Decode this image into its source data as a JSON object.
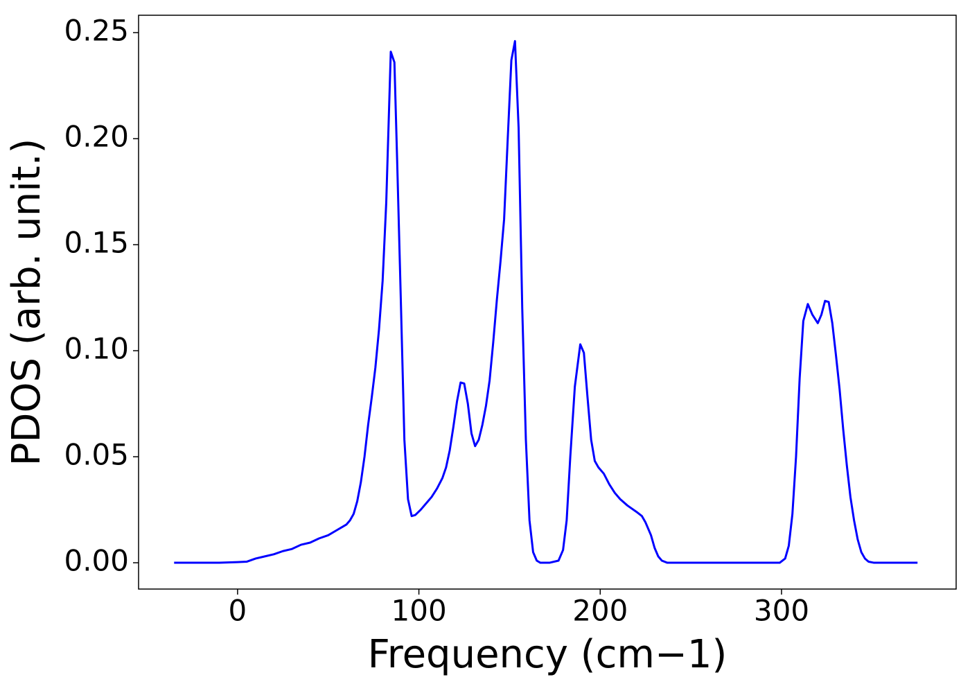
{
  "chart_data": {
    "type": "line",
    "xlabel": "Frequency (cm−1)",
    "ylabel": "PDOS (arb. unit.)",
    "xlim": [
      -54.6,
      396.3
    ],
    "ylim": [
      -0.0124,
      0.2582
    ],
    "xticks": [
      0,
      100,
      200,
      300
    ],
    "yticks": [
      {
        "value": 0,
        "label": "0.00"
      },
      {
        "value": 0.05,
        "label": "0.05"
      },
      {
        "value": 0.1,
        "label": "0.10"
      },
      {
        "value": 0.15,
        "label": "0.15"
      },
      {
        "value": 0.2,
        "label": "0.20"
      },
      {
        "value": 0.25,
        "label": "0.25"
      }
    ],
    "series": [
      {
        "color": "#0000ff",
        "x": [
          -35,
          -10,
          0,
          5,
          10,
          15,
          20,
          25,
          30,
          35,
          40,
          45,
          50,
          55,
          60,
          62,
          64,
          66,
          68,
          70,
          72,
          74,
          76,
          78,
          80,
          82,
          84.5,
          86.5,
          88,
          90,
          92,
          94,
          96,
          98,
          101,
          104,
          107,
          110,
          113,
          115,
          117,
          119,
          121,
          123,
          125,
          127,
          129,
          131,
          133,
          135,
          137,
          139,
          141,
          143,
          145,
          147,
          149,
          151,
          153,
          155,
          157,
          159,
          161,
          163,
          165,
          167,
          172,
          177,
          179.5,
          181.5,
          183.5,
          186,
          189,
          191,
          193,
          195,
          197,
          199,
          202,
          205,
          208,
          211,
          215,
          220,
          223,
          225,
          228,
          230,
          232,
          234,
          237,
          299,
          302,
          304,
          306,
          308,
          310,
          312,
          314.5,
          317,
          320,
          322,
          324,
          326,
          328,
          330,
          332,
          334,
          336,
          338,
          340,
          342,
          344,
          346,
          348,
          351,
          375
        ],
        "values": [
          0,
          0,
          0.0003,
          0.0005,
          0.002,
          0.003,
          0.004,
          0.0055,
          0.0065,
          0.0085,
          0.0095,
          0.0115,
          0.013,
          0.0155,
          0.018,
          0.02,
          0.023,
          0.029,
          0.038,
          0.05,
          0.065,
          0.078,
          0.092,
          0.11,
          0.133,
          0.17,
          0.241,
          0.236,
          0.19,
          0.125,
          0.058,
          0.03,
          0.022,
          0.0225,
          0.025,
          0.028,
          0.031,
          0.035,
          0.04,
          0.045,
          0.053,
          0.064,
          0.076,
          0.085,
          0.0845,
          0.075,
          0.061,
          0.055,
          0.058,
          0.065,
          0.074,
          0.086,
          0.104,
          0.124,
          0.142,
          0.162,
          0.2,
          0.237,
          0.246,
          0.205,
          0.12,
          0.058,
          0.02,
          0.005,
          0.001,
          0,
          0,
          0.001,
          0.006,
          0.02,
          0.05,
          0.083,
          0.103,
          0.099,
          0.078,
          0.058,
          0.048,
          0.045,
          0.042,
          0.037,
          0.033,
          0.03,
          0.027,
          0.024,
          0.022,
          0.019,
          0.013,
          0.007,
          0.003,
          0.001,
          0,
          0,
          0.002,
          0.008,
          0.023,
          0.05,
          0.087,
          0.114,
          0.122,
          0.117,
          0.113,
          0.117,
          0.1235,
          0.123,
          0.113,
          0.098,
          0.082,
          0.063,
          0.046,
          0.031,
          0.02,
          0.011,
          0.005,
          0.002,
          0.0005,
          0,
          0
        ]
      }
    ]
  }
}
